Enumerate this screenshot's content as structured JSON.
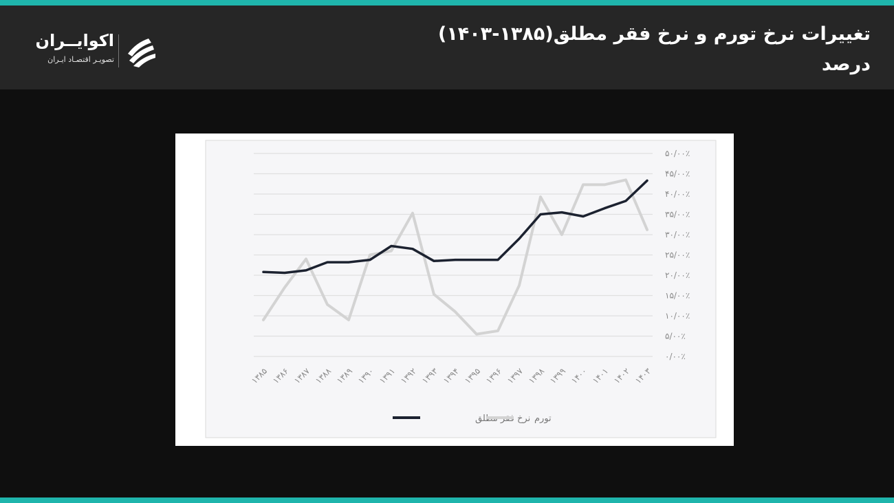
{
  "header": {
    "title_line1": "تغییرات نرخ تورم و نرخ فقر مطلق(۱۳۸۵-۱۴۰۳)",
    "title_line2": "درصد"
  },
  "logo": {
    "name": "اکوایــران",
    "tagline": "تصویـر اقتصـاد ایـران"
  },
  "colors": {
    "accent": "#1fb5ac",
    "header_bg": "#262626",
    "page_bg": "#0f0f0f",
    "poverty_line": "#1c2230",
    "inflation_line": "#d3d3d3"
  },
  "chart_data": {
    "type": "line",
    "title": "",
    "xlabel": "",
    "ylabel": "",
    "categories": [
      "۱۳۸۵",
      "۱۳۸۶",
      "۱۳۸۷",
      "۱۳۸۸",
      "۱۳۸۹",
      "۱۳۹۰",
      "۱۳۹۱",
      "۱۳۹۲",
      "۱۳۹۳",
      "۱۳۹۴",
      "۱۳۹۵",
      "۱۳۹۶",
      "۱۳۹۷",
      "۱۳۹۸",
      "۱۳۹۹",
      "۱۴۰۰",
      "۱۴۰۱",
      "۱۴۰۲",
      "۱۴۰۳"
    ],
    "y_ticks": [
      "۰/۰۰٪",
      "۵/۰۰٪",
      "۱۰/۰۰٪",
      "۱۵/۰۰٪",
      "۲۰/۰۰٪",
      "۲۵/۰۰٪",
      "۳۰/۰۰٪",
      "۳۵/۰۰٪",
      "۴۰/۰۰٪",
      "۴۵/۰۰٪",
      "۵۰/۰۰٪"
    ],
    "ylim": [
      0,
      50
    ],
    "y_axis_position": "right",
    "grid": true,
    "legend_position": "bottom",
    "series": [
      {
        "name": "نرخ فقر مطلق",
        "color": "#1c2230",
        "values": [
          20.8,
          20.6,
          21.2,
          23.2,
          23.2,
          23.8,
          27.2,
          26.5,
          23.5,
          23.8,
          23.8,
          23.8,
          29.0,
          35.0,
          35.5,
          34.5,
          36.5,
          38.3,
          43.3
        ]
      },
      {
        "name": "تورم",
        "color": "#d3d3d3",
        "values": [
          9.0,
          17.0,
          24.0,
          12.8,
          9.0,
          25.0,
          26.0,
          35.3,
          15.3,
          11.0,
          5.5,
          6.3,
          17.5,
          39.3,
          30.0,
          42.3,
          42.3,
          43.5,
          31.2
        ]
      }
    ]
  }
}
